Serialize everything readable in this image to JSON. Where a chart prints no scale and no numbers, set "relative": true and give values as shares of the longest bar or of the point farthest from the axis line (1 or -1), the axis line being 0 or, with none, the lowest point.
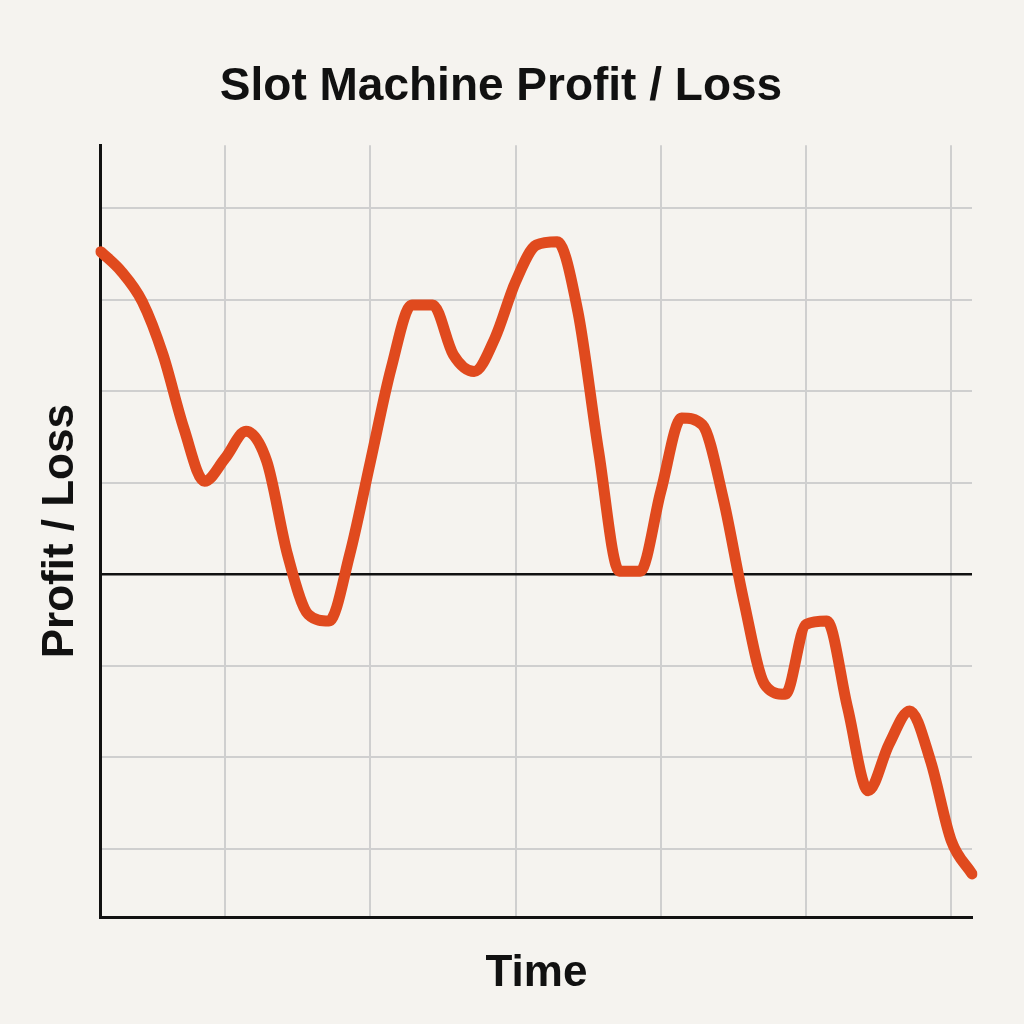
{
  "chart_data": {
    "type": "line",
    "title": "Slot Machine Profit / Loss",
    "xlabel": "Time",
    "ylabel": "Profit / Loss",
    "relative": true,
    "grid": true,
    "marker": "none",
    "color": "#e04a1e",
    "categories": [
      null,
      null,
      null,
      null,
      null,
      null,
      null,
      null,
      null,
      null,
      null,
      null,
      null,
      null,
      null,
      null,
      null,
      null,
      null,
      null,
      null,
      null,
      null,
      null,
      null,
      null,
      null,
      null,
      null,
      null,
      null,
      null,
      null,
      null,
      null,
      null,
      null,
      null,
      null,
      null,
      null,
      null,
      null
    ],
    "values": [
      0.97,
      0.91,
      0.82,
      0.66,
      0.44,
      0.28,
      0.35,
      0.43,
      0.34,
      0.06,
      -0.12,
      -0.14,
      0.06,
      0.34,
      0.62,
      0.81,
      0.81,
      0.66,
      0.61,
      0.71,
      0.88,
      0.99,
      1,
      0.79,
      0.37,
      0.01,
      0.01,
      0.25,
      0.47,
      0.45,
      0.23,
      -0.08,
      -0.33,
      -0.36,
      -0.15,
      -0.14,
      -0.4,
      -0.65,
      -0.51,
      -0.41,
      -0.56,
      -0.8,
      -0.9
    ]
  }
}
